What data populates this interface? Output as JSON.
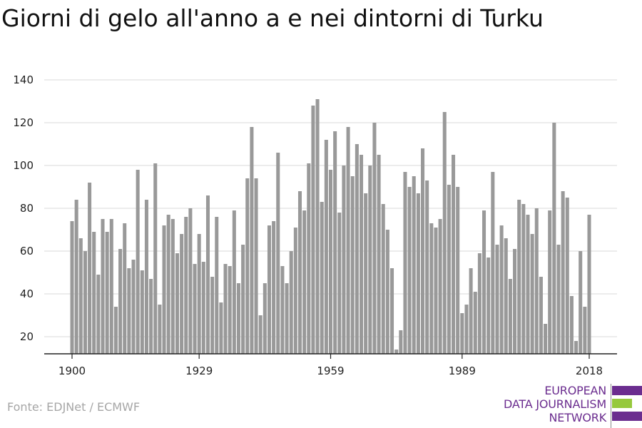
{
  "chart_data": {
    "type": "bar",
    "title": "Giorni di gelo all'anno a e nei dintorni di Turku",
    "xlabel": "",
    "ylabel": "",
    "x_start": 1900,
    "x_end": 2018,
    "x_ticks": [
      "1900",
      "1929",
      "1959",
      "1989",
      "2018"
    ],
    "y_ticks": [
      "20",
      "40",
      "60",
      "80",
      "100",
      "120",
      "140"
    ],
    "ylim": [
      12,
      140
    ],
    "grid": true,
    "bar_color": "#999999",
    "values": [
      74,
      84,
      66,
      60,
      92,
      69,
      49,
      75,
      69,
      75,
      34,
      61,
      73,
      52,
      56,
      98,
      51,
      84,
      47,
      101,
      35,
      72,
      77,
      75,
      59,
      68,
      76,
      80,
      54,
      68,
      55,
      86,
      48,
      76,
      36,
      54,
      53,
      79,
      45,
      63,
      94,
      118,
      94,
      30,
      45,
      72,
      74,
      106,
      53,
      45,
      60,
      71,
      88,
      79,
      101,
      128,
      131,
      83,
      112,
      98,
      116,
      78,
      100,
      118,
      95,
      110,
      105,
      87,
      100,
      120,
      105,
      82,
      70,
      52,
      14,
      23,
      97,
      90,
      95,
      87,
      108,
      93,
      73,
      71,
      75,
      125,
      91,
      105,
      90,
      31,
      35,
      52,
      41,
      59,
      79,
      57,
      97,
      63,
      72,
      66,
      47,
      61,
      84,
      82,
      77,
      68,
      80,
      48,
      26,
      79,
      120,
      63,
      88,
      85,
      39,
      18,
      60,
      34,
      77
    ]
  },
  "source": "Fonte: EDJNet / ECMWF",
  "logo": {
    "line1": "EUROPEAN",
    "line2": "DATA JOURNALISM",
    "line3": "NETWORK",
    "purple": "#6b2d8f",
    "green": "#96c93d"
  }
}
